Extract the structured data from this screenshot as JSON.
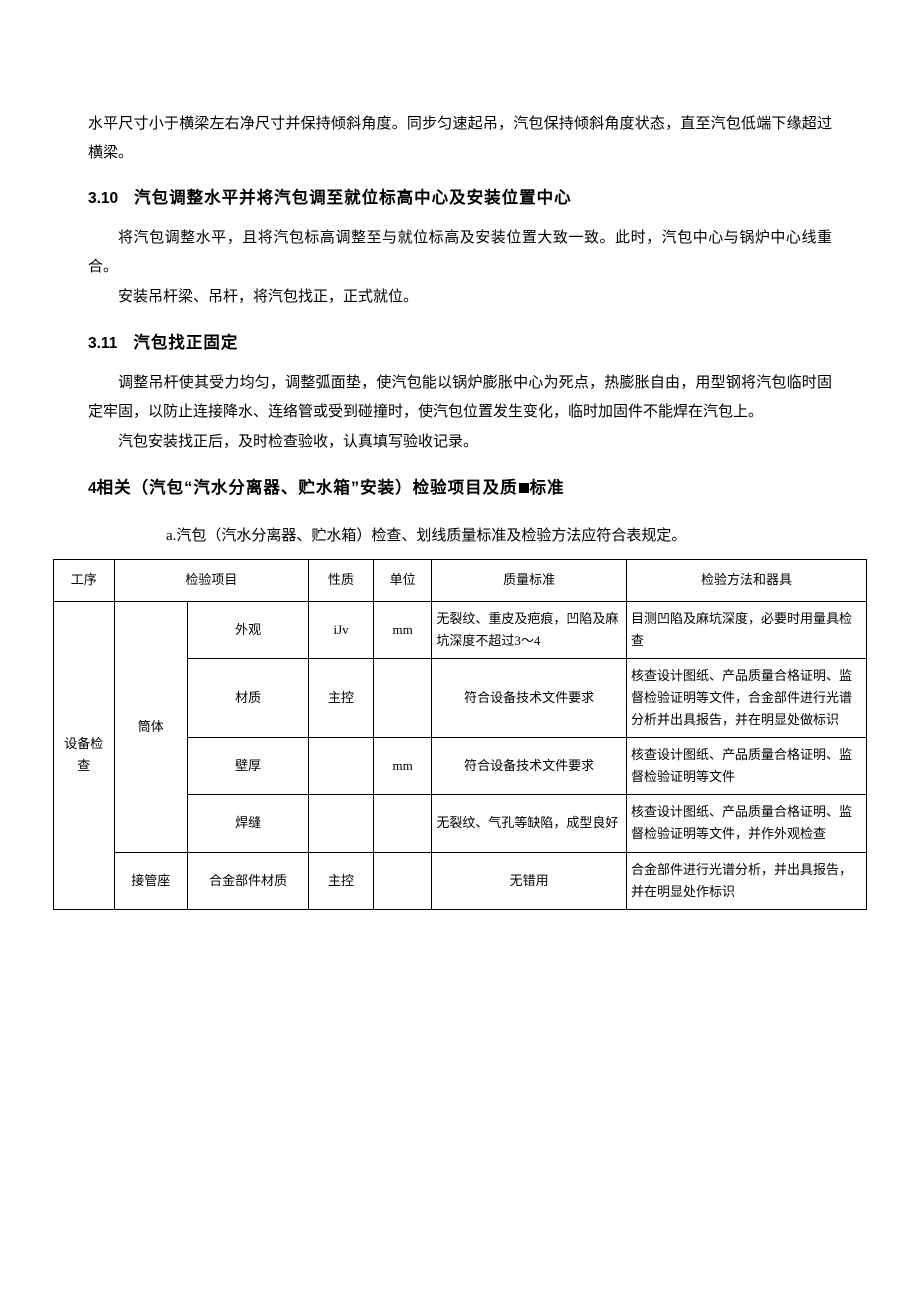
{
  "intro": {
    "p1": "水平尺寸小于横梁左右净尺寸并保持倾斜角度。同步匀速起吊，汽包保持倾斜角度状态，直至汽包低端下缘超过横梁。"
  },
  "sec310": {
    "num": "3.10",
    "title": "汽包调整水平并将汽包调至就位标高中心及安装位置中心",
    "p1": "将汽包调整水平，且将汽包标高调整至与就位标高及安装位置大致一致。此时，汽包中心与锅炉中心线重合。",
    "p2": "安装吊杆梁、吊杆，将汽包找正，正式就位。"
  },
  "sec311": {
    "num": "3.11",
    "title": "汽包找正固定",
    "p1": "调整吊杆使其受力均匀，调整弧面垫，使汽包能以锅炉膨胀中心为死点，热膨胀自由，用型钢将汽包临时固定牢固，以防止连接降水、连络管或受到碰撞时，使汽包位置发生变化，临时加固件不能焊在汽包上。",
    "p2": "汽包安装找正后，及时检查验收，认真填写验收记录。"
  },
  "sec4": {
    "num": "4",
    "title_a": "相关（汽包“汽水分离器、贮水箱”安装）检验项目及质",
    "title_b": "标准",
    "caption": "a.汽包（汽水分离器、贮水箱）检查、划线质量标准及检验方法应符合表规定。"
  },
  "table": {
    "columns": [
      "工序",
      "检验项目",
      "性质",
      "单位",
      "质量标准",
      "检验方法和器具"
    ],
    "group1": "设备检查",
    "sub1": "筒体",
    "sub2": "接管座",
    "rows": [
      {
        "item": "外观",
        "prop": "iJv",
        "unit": "mm",
        "std": "无裂纹、重皮及疤痕，凹陷及麻坑深度不超过3〜4",
        "method": "目测凹陷及麻坑深度，必要时用量具检查"
      },
      {
        "item": "材质",
        "prop": "主控",
        "unit": "",
        "std": "符合设备技术文件要求",
        "method": "核查设计图纸、产品质量合格证明、监督检验证明等文件，合金部件进行光谱分析并出具报告，并在明显处做标识"
      },
      {
        "item": "壁厚",
        "prop": "",
        "unit": "mm",
        "std": "符合设备技术文件要求",
        "method": "核查设计图纸、产品质量合格证明、监督检验证明等文件"
      },
      {
        "item": "焊缝",
        "prop": "",
        "unit": "",
        "std": "无裂纹、气孔等缺陷，成型良好",
        "method": "核查设计图纸、产品质量合格证明、监督检验证明等文件，并作外观检查"
      },
      {
        "item": "合金部件材质",
        "prop": "主控",
        "unit": "",
        "std": "无错用",
        "method": "合金部件进行光谱分析，并出具报告，并在明显处作标识"
      }
    ]
  },
  "style": {
    "font_color": "#000000",
    "bg_color": "#ffffff",
    "border_color": "#000000",
    "body_fontsize": 15,
    "heading_fontsize": 16.5,
    "table_fontsize": 13
  }
}
